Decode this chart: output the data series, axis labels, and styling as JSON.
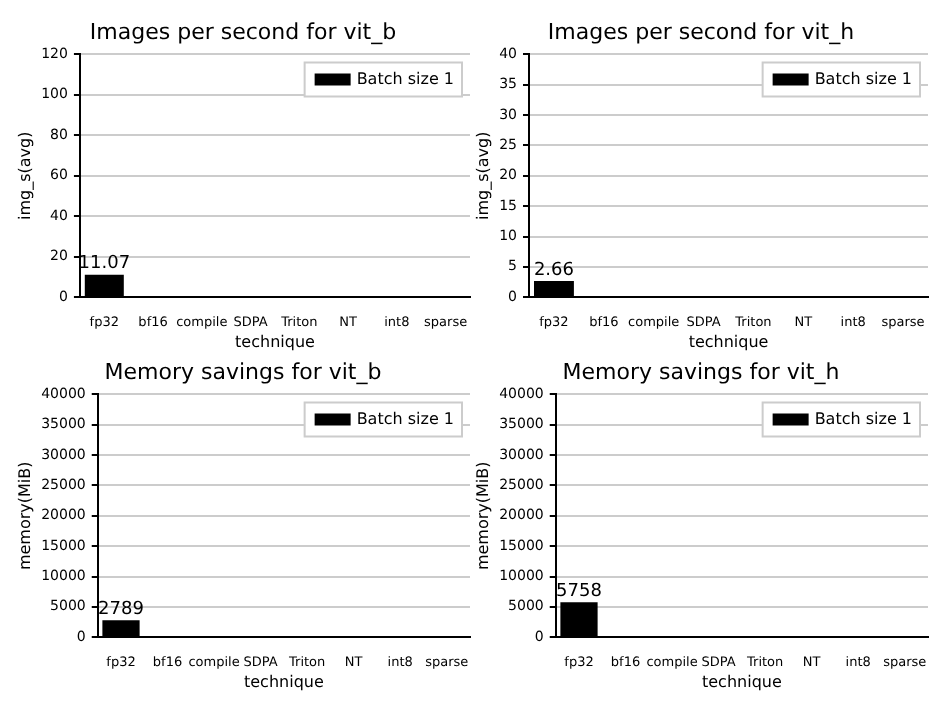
{
  "chart_data": [
    {
      "type": "bar",
      "title": "Images per second for vit_b",
      "xlabel": "technique",
      "ylabel": "img_s(avg)",
      "categories": [
        "fp32",
        "bf16",
        "compile",
        "SDPA",
        "Triton",
        "NT",
        "int8",
        "sparse"
      ],
      "series": [
        {
          "name": "Batch size 1",
          "color": "#000000",
          "values": [
            11.07,
            null,
            null,
            null,
            null,
            null,
            null,
            null
          ],
          "value_labels": [
            "11.07",
            null,
            null,
            null,
            null,
            null,
            null,
            null
          ]
        }
      ],
      "ylim": [
        0,
        120
      ],
      "yticks": [
        0,
        20,
        40,
        60,
        80,
        100,
        120
      ],
      "grid": "y",
      "legend": "top right"
    },
    {
      "type": "bar",
      "title": "Images per second for vit_h",
      "xlabel": "technique",
      "ylabel": "img_s(avg)",
      "categories": [
        "fp32",
        "bf16",
        "compile",
        "SDPA",
        "Triton",
        "NT",
        "int8",
        "sparse"
      ],
      "series": [
        {
          "name": "Batch size 1",
          "color": "#000000",
          "values": [
            2.66,
            null,
            null,
            null,
            null,
            null,
            null,
            null
          ],
          "value_labels": [
            "2.66",
            null,
            null,
            null,
            null,
            null,
            null,
            null
          ]
        }
      ],
      "ylim": [
        0,
        40
      ],
      "yticks": [
        0,
        5,
        10,
        15,
        20,
        25,
        30,
        35,
        40
      ],
      "grid": "y",
      "legend": "top right"
    },
    {
      "type": "bar",
      "title": "Memory savings for vit_b",
      "xlabel": "technique",
      "ylabel": "memory(MiB)",
      "categories": [
        "fp32",
        "bf16",
        "compile",
        "SDPA",
        "Triton",
        "NT",
        "int8",
        "sparse"
      ],
      "series": [
        {
          "name": "Batch size 1",
          "color": "#000000",
          "values": [
            2789,
            null,
            null,
            null,
            null,
            null,
            null,
            null
          ],
          "value_labels": [
            "2789",
            null,
            null,
            null,
            null,
            null,
            null,
            null
          ]
        }
      ],
      "ylim": [
        0,
        40000
      ],
      "yticks": [
        0,
        5000,
        10000,
        15000,
        20000,
        25000,
        30000,
        35000,
        40000
      ],
      "grid": "y",
      "legend": "top right"
    },
    {
      "type": "bar",
      "title": "Memory savings for vit_h",
      "xlabel": "technique",
      "ylabel": "memory(MiB)",
      "categories": [
        "fp32",
        "bf16",
        "compile",
        "SDPA",
        "Triton",
        "NT",
        "int8",
        "sparse"
      ],
      "series": [
        {
          "name": "Batch size 1",
          "color": "#000000",
          "values": [
            5758,
            null,
            null,
            null,
            null,
            null,
            null,
            null
          ],
          "value_labels": [
            "5758",
            null,
            null,
            null,
            null,
            null,
            null,
            null
          ]
        }
      ],
      "ylim": [
        0,
        40000
      ],
      "yticks": [
        0,
        5000,
        10000,
        15000,
        20000,
        25000,
        30000,
        35000,
        40000
      ],
      "grid": "y",
      "legend": "top right"
    }
  ]
}
